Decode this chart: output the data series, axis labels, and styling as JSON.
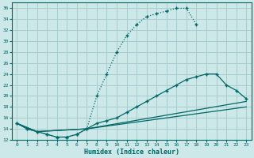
{
  "xlabel": "Humidex (Indice chaleur)",
  "bg_color": "#cce8e8",
  "grid_color": "#aacccc",
  "line_color": "#006666",
  "xlim": [
    -0.5,
    23.5
  ],
  "ylim": [
    12,
    37
  ],
  "yticks": [
    12,
    14,
    16,
    18,
    20,
    22,
    24,
    26,
    28,
    30,
    32,
    34,
    36
  ],
  "xticks": [
    0,
    1,
    2,
    3,
    4,
    5,
    6,
    7,
    8,
    9,
    10,
    11,
    12,
    13,
    14,
    15,
    16,
    17,
    18,
    19,
    20,
    21,
    22,
    23
  ],
  "curve1_x": [
    0,
    1,
    2,
    3,
    4,
    5,
    6,
    7,
    8,
    9,
    10,
    11,
    12,
    13,
    14,
    15,
    16,
    17,
    18
  ],
  "curve1_y": [
    15,
    14,
    13.5,
    13,
    12.5,
    12.5,
    13,
    14,
    20,
    24,
    28,
    31,
    33,
    34.5,
    35,
    35.5,
    36,
    36,
    33
  ],
  "curve2_x": [
    0,
    1,
    2,
    3,
    4,
    5,
    6,
    7,
    8,
    9,
    10,
    11,
    12,
    13,
    14,
    15,
    16,
    17,
    18,
    19,
    20,
    21,
    22,
    23
  ],
  "curve2_y": [
    15,
    14,
    13.5,
    13,
    12.5,
    12.5,
    13,
    14,
    15,
    15.5,
    16,
    17,
    18,
    19,
    20,
    21,
    22,
    23,
    23.5,
    24,
    24,
    22,
    21,
    19.5
  ],
  "curve3_x": [
    0,
    2,
    7,
    23
  ],
  "curve3_y": [
    15,
    13.5,
    14,
    19
  ],
  "curve4_x": [
    0,
    2,
    7,
    23
  ],
  "curve4_y": [
    15,
    13.5,
    14,
    18
  ]
}
